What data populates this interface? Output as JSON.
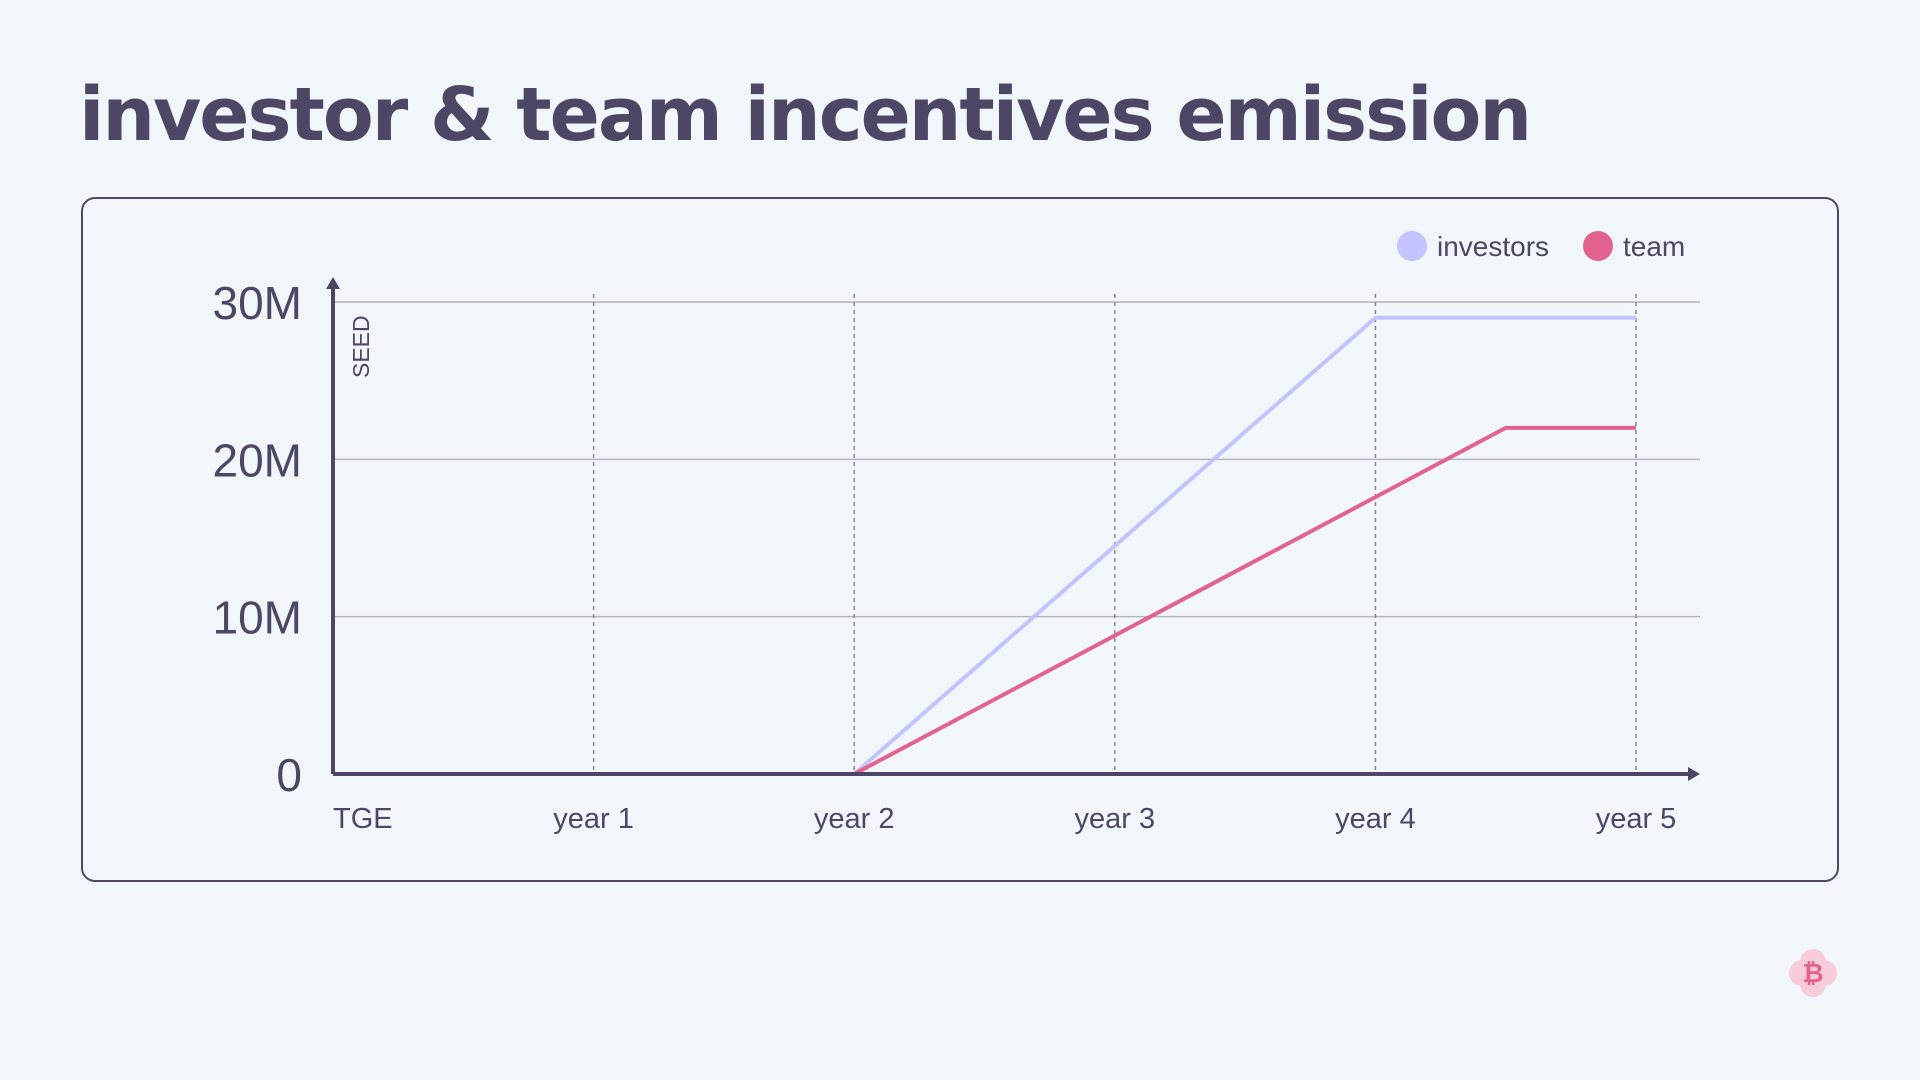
{
  "title": "investor & team incentives emission",
  "chart_data": {
    "type": "line",
    "title": "",
    "ylabel": "SEED",
    "xlabel": "",
    "x_ticks": [
      "TGE",
      "year 1",
      "year 2",
      "year 3",
      "year 4",
      "year 5"
    ],
    "y_ticks": [
      "0",
      "10M",
      "20M",
      "30M"
    ],
    "y_tick_values": [
      0,
      10000000,
      20000000,
      30000000
    ],
    "xlim": [
      0,
      5
    ],
    "ylim": [
      0,
      30000000
    ],
    "grid": "horizontal solid, vertical dashed",
    "legend_position": "top-right",
    "series": [
      {
        "name": "investors",
        "color": "#c3c3fd",
        "points": [
          [
            0,
            0
          ],
          [
            2,
            0
          ],
          [
            4,
            29000000
          ],
          [
            5,
            29000000
          ]
        ]
      },
      {
        "name": "team",
        "color": "#e2638f",
        "points": [
          [
            0,
            0
          ],
          [
            2,
            0
          ],
          [
            4.5,
            22000000
          ],
          [
            5,
            22000000
          ]
        ]
      }
    ]
  },
  "colors": {
    "background": "#f1f6fb",
    "text": "#4e4665",
    "grid": "#b5b4bf"
  },
  "logo": {
    "icon": "bitcoin-icon",
    "text": "₿"
  }
}
